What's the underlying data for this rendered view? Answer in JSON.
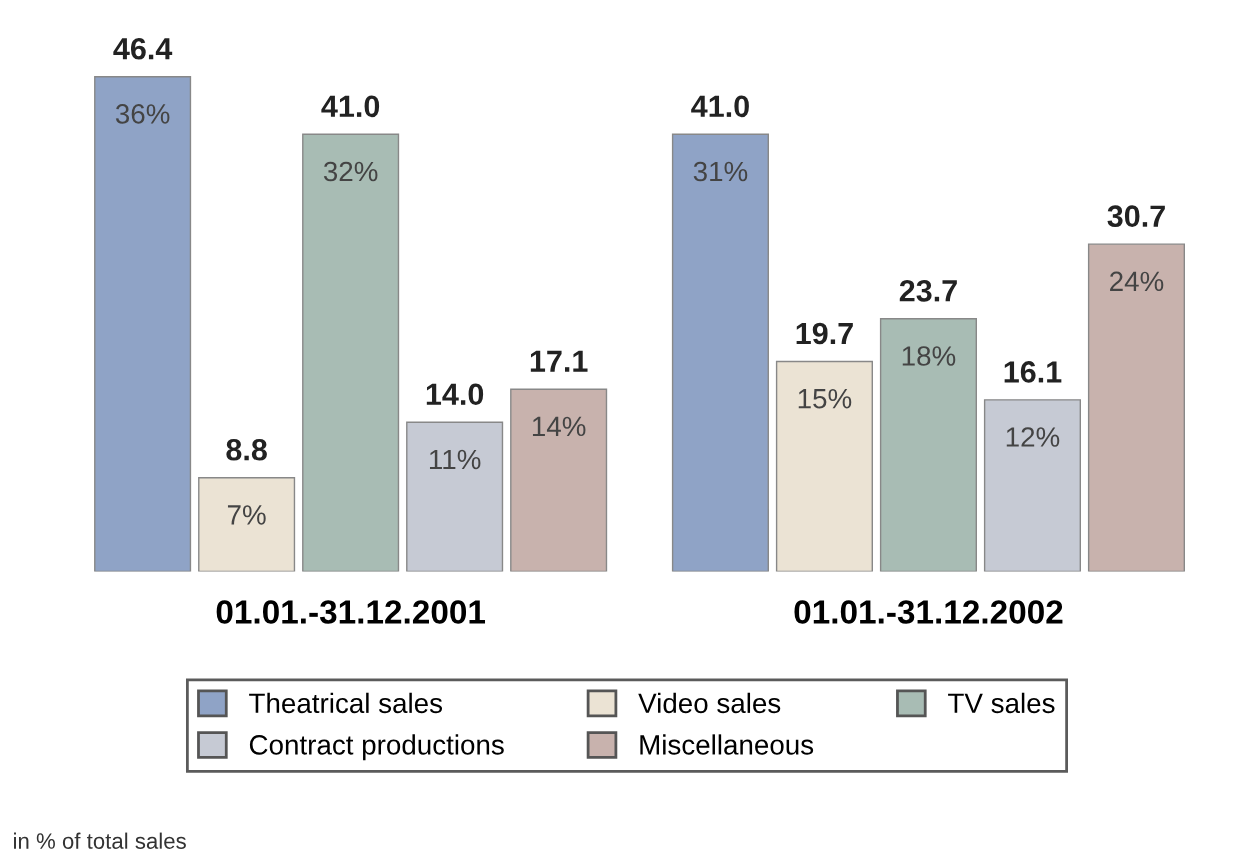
{
  "chart_data": {
    "type": "bar",
    "categories": [
      "01.01.-31.12.2001",
      "01.01.-31.12.2002"
    ],
    "series": [
      {
        "name": "Theatrical sales",
        "color": "#8fa3c6",
        "values": [
          46.4,
          41.0
        ],
        "value_labels": [
          "46.4",
          "41.0"
        ]
      },
      {
        "name": "Video sales",
        "color": "#ebe3d4",
        "values": [
          8.8,
          19.7
        ],
        "value_labels": [
          "8.8",
          "19.7"
        ]
      },
      {
        "name": "TV sales",
        "color": "#a8bcb4",
        "values": [
          41.0,
          23.7
        ],
        "value_labels": [
          "41.0",
          "23.7"
        ]
      },
      {
        "name": "Contract productions",
        "color": "#c6cad4",
        "values": [
          14.0,
          16.1
        ],
        "value_labels": [
          "14.0",
          "16.1"
        ]
      },
      {
        "name": "Miscellaneous",
        "color": "#c8b2ad",
        "values": [
          17.1,
          30.7
        ],
        "value_labels": [
          "17.1",
          "30.7"
        ]
      }
    ],
    "legend": "bottom",
    "annotations": [
      "36%",
      "7%",
      "32%",
      "11%",
      "14%",
      "31%",
      "15%",
      "18%",
      "12%",
      "24%",
      "in % of total sales"
    ]
  }
}
